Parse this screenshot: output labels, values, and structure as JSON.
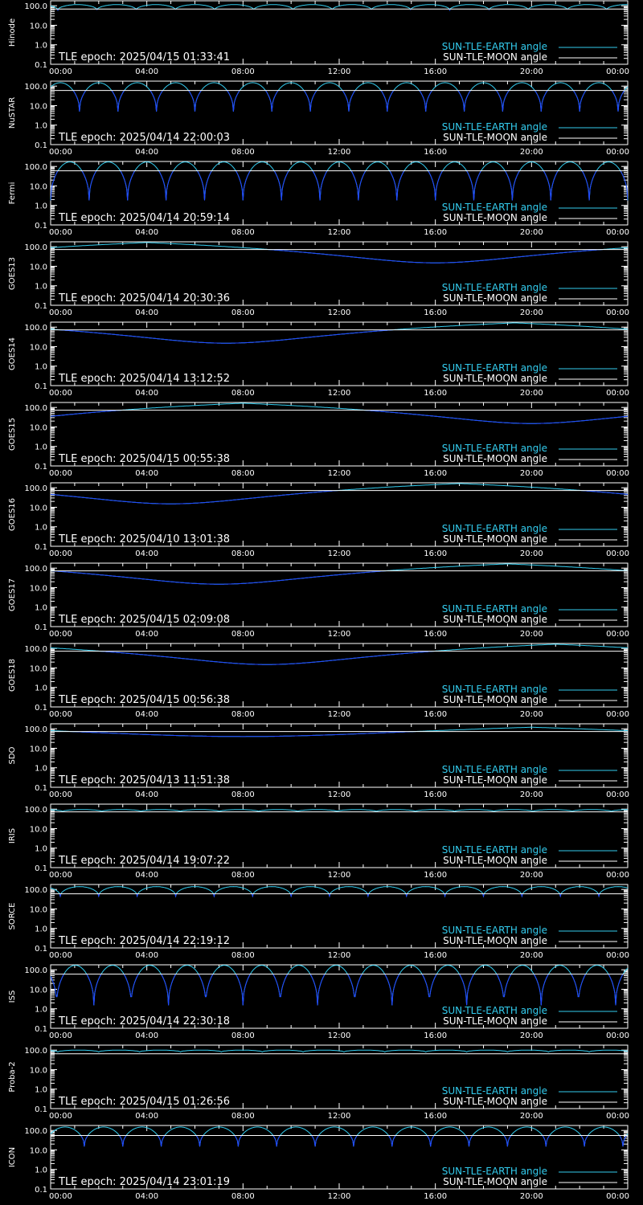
{
  "axis": {
    "yticks": [
      "100.0",
      "10.0",
      "1.0",
      "0.1"
    ],
    "ytick_values": [
      100,
      10,
      1,
      0.1
    ],
    "ylim": [
      0.1,
      180
    ],
    "yscale": "log",
    "xticks": [
      "00:00",
      "04:00",
      "08:00",
      "12:00",
      "16:00",
      "20:00",
      "00:00"
    ],
    "xlim_hours": [
      0,
      24
    ]
  },
  "legend": {
    "earth_label": "SUN-TLE-EARTH angle",
    "moon_label": "SUN-TLE-MOON angle"
  },
  "colors": {
    "background": "#000000",
    "axes": "#ffffff",
    "earth": "#33ccee",
    "earth_low": "#2244ff",
    "moon": "#ffffff"
  },
  "chart_data": [
    {
      "type": "line",
      "ylabel": "Hinode",
      "epoch_text": "TLE epoch: 2025/04/15 01:33:41",
      "series": [
        {
          "name": "SUN-TLE-EARTH angle",
          "model": "orbit",
          "period_h": 1.63,
          "phase_h": 0.3,
          "min": 60,
          "max": 115
        },
        {
          "name": "SUN-TLE-MOON angle",
          "model": "const",
          "value": 68
        }
      ]
    },
    {
      "type": "line",
      "ylabel": "NuSTAR",
      "epoch_text": "TLE epoch: 2025/04/14 22:00:03",
      "series": [
        {
          "name": "SUN-TLE-EARTH angle",
          "model": "orbit",
          "period_h": 1.6,
          "phase_h": 1.2,
          "min": 5,
          "max": 150
        },
        {
          "name": "SUN-TLE-MOON angle",
          "model": "const",
          "value": 60
        }
      ]
    },
    {
      "type": "line",
      "ylabel": "Fermi",
      "epoch_text": "TLE epoch: 2025/04/14 20:59:14",
      "series": [
        {
          "name": "SUN-TLE-EARTH angle",
          "model": "orbit",
          "period_h": 1.6,
          "phase_h": 1.6,
          "min": 1.8,
          "max": 170
        },
        {
          "name": "SUN-TLE-MOON angle",
          "model": "const",
          "value": 60
        }
      ]
    },
    {
      "type": "line",
      "ylabel": "GOES13",
      "epoch_text": "TLE epoch: 2025/04/14 20:30:36",
      "series": [
        {
          "name": "SUN-TLE-EARTH angle",
          "model": "geo",
          "t_min_h": 16.0,
          "min": 15,
          "max": 165
        },
        {
          "name": "SUN-TLE-MOON angle",
          "model": "const",
          "value": 72
        }
      ]
    },
    {
      "type": "line",
      "ylabel": "GOES14",
      "epoch_text": "TLE epoch: 2025/04/14 13:12:52",
      "series": [
        {
          "name": "SUN-TLE-EARTH angle",
          "model": "geo",
          "t_min_h": 7.3,
          "min": 15,
          "max": 165
        },
        {
          "name": "SUN-TLE-MOON angle",
          "model": "const",
          "value": 72
        }
      ]
    },
    {
      "type": "line",
      "ylabel": "GOES15",
      "epoch_text": "TLE epoch: 2025/04/15 00:55:38",
      "series": [
        {
          "name": "SUN-TLE-EARTH angle",
          "model": "geo",
          "t_min_h": 20.0,
          "min": 15,
          "max": 165
        },
        {
          "name": "SUN-TLE-MOON angle",
          "model": "const",
          "value": 72
        }
      ]
    },
    {
      "type": "line",
      "ylabel": "GOES16",
      "epoch_text": "TLE epoch: 2025/04/10 13:01:38",
      "series": [
        {
          "name": "SUN-TLE-EARTH angle",
          "model": "geo",
          "t_min_h": 5.0,
          "min": 15,
          "max": 165
        },
        {
          "name": "SUN-TLE-MOON angle",
          "model": "const",
          "value": 72
        }
      ]
    },
    {
      "type": "line",
      "ylabel": "GOES17",
      "epoch_text": "TLE epoch: 2025/04/15 02:09:08",
      "series": [
        {
          "name": "SUN-TLE-EARTH angle",
          "model": "geo",
          "t_min_h": 7.0,
          "min": 15,
          "max": 165
        },
        {
          "name": "SUN-TLE-MOON angle",
          "model": "const",
          "value": 72
        }
      ]
    },
    {
      "type": "line",
      "ylabel": "GOES18",
      "epoch_text": "TLE epoch: 2025/04/15 00:56:38",
      "series": [
        {
          "name": "SUN-TLE-EARTH angle",
          "model": "geo",
          "t_min_h": 9.0,
          "min": 15,
          "max": 165
        },
        {
          "name": "SUN-TLE-MOON angle",
          "model": "const",
          "value": 72
        }
      ]
    },
    {
      "type": "line",
      "ylabel": "SDO",
      "epoch_text": "TLE epoch: 2025/04/13 11:51:38",
      "series": [
        {
          "name": "SUN-TLE-EARTH angle",
          "model": "geo",
          "t_min_h": 8.0,
          "min": 40,
          "max": 120
        },
        {
          "name": "SUN-TLE-MOON angle",
          "model": "const",
          "value": 72
        }
      ]
    },
    {
      "type": "line",
      "ylabel": "IRIS",
      "epoch_text": "TLE epoch: 2025/04/14 19:07:22",
      "series": [
        {
          "name": "SUN-TLE-EARTH angle",
          "model": "orbit",
          "period_h": 1.63,
          "phase_h": 0.5,
          "min": 75,
          "max": 95
        },
        {
          "name": "SUN-TLE-MOON angle",
          "model": "const",
          "value": 72
        }
      ]
    },
    {
      "type": "line",
      "ylabel": "SORCE",
      "epoch_text": "TLE epoch: 2025/04/14 22:19:12",
      "series": [
        {
          "name": "SUN-TLE-EARTH angle",
          "model": "orbit",
          "period_h": 1.6,
          "phase_h": 0.4,
          "min": 45,
          "max": 140
        },
        {
          "name": "SUN-TLE-MOON angle",
          "model": "const",
          "value": 60
        }
      ]
    },
    {
      "type": "line",
      "ylabel": "ISS",
      "epoch_text": "TLE epoch: 2025/04/14 22:30:18",
      "series": [
        {
          "name": "SUN-TLE-EARTH angle",
          "model": "orbit",
          "period_h": 1.55,
          "phase_h": 1.8,
          "min": 1.5,
          "max": 170
        },
        {
          "name": "SUN-TLE-MOON angle",
          "model": "const",
          "value": 60
        }
      ]
    },
    {
      "type": "line",
      "ylabel": "Proba-2",
      "epoch_text": "TLE epoch: 2025/04/15 01:26:56",
      "series": [
        {
          "name": "SUN-TLE-EARTH angle",
          "model": "orbit",
          "period_h": 1.7,
          "phase_h": 0.3,
          "min": 80,
          "max": 100
        },
        {
          "name": "SUN-TLE-MOON angle",
          "model": "const",
          "value": 65
        }
      ]
    },
    {
      "type": "line",
      "ylabel": "ICON",
      "epoch_text": "TLE epoch: 2025/04/14 23:01:19",
      "series": [
        {
          "name": "SUN-TLE-EARTH angle",
          "model": "orbit",
          "period_h": 1.6,
          "phase_h": 1.4,
          "min": 15,
          "max": 150
        },
        {
          "name": "SUN-TLE-MOON angle",
          "model": "const",
          "value": 55
        }
      ]
    }
  ]
}
